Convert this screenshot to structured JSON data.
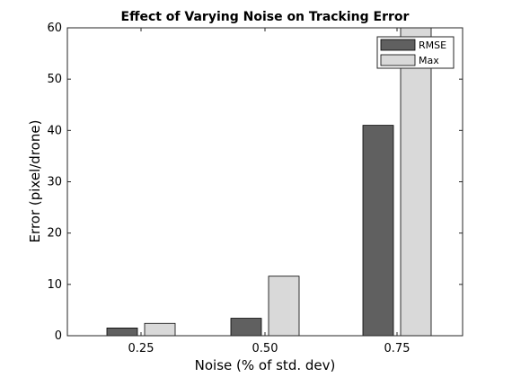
{
  "chart_data": {
    "type": "bar",
    "title": "Effect of Varying Noise on Tracking Error",
    "xlabel": "Noise (% of std. dev)",
    "ylabel": "Error (pixel/drone)",
    "categories": [
      "0.25",
      "0.50",
      "0.75"
    ],
    "series": [
      {
        "name": "RMSE",
        "values": [
          1.5,
          3.4,
          41.0
        ],
        "color": "#606060"
      },
      {
        "name": "Max",
        "values": [
          2.4,
          11.6,
          60.0
        ],
        "color": "#d9d9d9"
      }
    ],
    "ylim": [
      0,
      60
    ],
    "yticks": [
      "0",
      "10",
      "20",
      "30",
      "40",
      "50",
      "60"
    ],
    "grid": false,
    "legend_position": "top-right"
  }
}
